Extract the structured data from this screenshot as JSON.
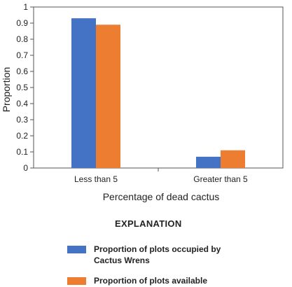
{
  "chart_data": {
    "type": "bar",
    "categories": [
      "Less than 5",
      "Greater than 5"
    ],
    "series": [
      {
        "name": "Proportion of plots occupied by\nCactus Wrens",
        "values": [
          0.93,
          0.07
        ],
        "color": "#4472C4"
      },
      {
        "name": "Proportion of plots available",
        "values": [
          0.89,
          0.11
        ],
        "color": "#ED7D31"
      }
    ],
    "title": "",
    "xlabel": "Percentage of dead cactus",
    "ylabel": "Proportion",
    "ylim": [
      0,
      1
    ],
    "yticks": [
      "0",
      "0.1",
      "0.2",
      "0.3",
      "0.4",
      "0.5",
      "0.6",
      "0.7",
      "0.8",
      "0.9",
      "1"
    ],
    "grid": false,
    "legend_title": "EXPLANATION",
    "legend_position": "bottom"
  }
}
